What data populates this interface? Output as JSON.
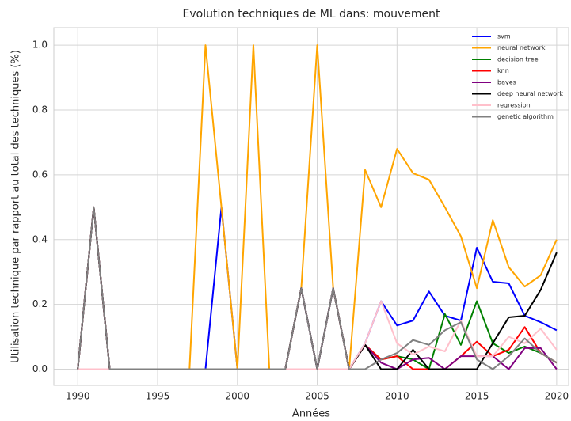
{
  "chart_data": {
    "type": "line",
    "title": "Evolution techniques de ML dans: mouvement",
    "xlabel": "Années",
    "ylabel": "Utilisation technique par rapport au total des techniques (%)",
    "x": [
      1990,
      1991,
      1992,
      1993,
      1994,
      1995,
      1996,
      1997,
      1998,
      1999,
      2000,
      2001,
      2002,
      2003,
      2004,
      2005,
      2006,
      2007,
      2008,
      2009,
      2010,
      2011,
      2012,
      2013,
      2014,
      2015,
      2016,
      2017,
      2018,
      2019,
      2020
    ],
    "series": [
      {
        "name": "svm",
        "color": "#0000ff",
        "values": [
          0,
          0.5,
          0,
          0,
          0,
          0,
          0,
          0,
          0,
          0.5,
          0,
          0,
          0,
          0,
          0.25,
          0,
          0.25,
          0,
          0.08,
          0.21,
          0.135,
          0.15,
          0.24,
          0.165,
          0.15,
          0.375,
          0.27,
          0.265,
          0.165,
          0.145,
          0.12
        ]
      },
      {
        "name": "neural network",
        "color": "#ffa500",
        "values": [
          0,
          0.5,
          0,
          0,
          0,
          0,
          0,
          0,
          1.0,
          0.5,
          0,
          1.0,
          0,
          0,
          0.25,
          1.0,
          0.25,
          0,
          0.615,
          0.5,
          0.68,
          0.605,
          0.585,
          0.5,
          0.41,
          0.25,
          0.46,
          0.315,
          0.255,
          0.29,
          0.4
        ]
      },
      {
        "name": "decision tree",
        "color": "#008000",
        "values": [
          0,
          0.5,
          0,
          0,
          0,
          0,
          0,
          0,
          0,
          0,
          0,
          0,
          0,
          0,
          0.25,
          0,
          0.25,
          0,
          0.075,
          0.03,
          0.04,
          0.03,
          0,
          0.17,
          0.075,
          0.21,
          0.08,
          0.05,
          0.07,
          0.05,
          0.02
        ]
      },
      {
        "name": "knn",
        "color": "#ff0000",
        "values": [
          0,
          0.5,
          0,
          0,
          0,
          0,
          0,
          0,
          0,
          0,
          0,
          0,
          0,
          0,
          0.25,
          0,
          0.25,
          0,
          0.075,
          0.03,
          0.04,
          0,
          0,
          0,
          0.04,
          0.085,
          0.04,
          0.06,
          0.13,
          0.05,
          0.02
        ]
      },
      {
        "name": "bayes",
        "color": "#800080",
        "values": [
          0,
          0.5,
          0,
          0,
          0,
          0,
          0,
          0,
          0,
          0,
          0,
          0,
          0,
          0,
          0.25,
          0,
          0.25,
          0,
          0.075,
          0.02,
          0,
          0.03,
          0.035,
          0,
          0.04,
          0.04,
          0.04,
          0,
          0.065,
          0.065,
          0
        ]
      },
      {
        "name": "deep neural network",
        "color": "#000000",
        "values": [
          0,
          0.5,
          0,
          0,
          0,
          0,
          0,
          0,
          0,
          0,
          0,
          0,
          0,
          0,
          0.25,
          0,
          0.25,
          0,
          0.075,
          0,
          0,
          0.06,
          0,
          0,
          0,
          0,
          0.08,
          0.16,
          0.165,
          0.245,
          0.36
        ]
      },
      {
        "name": "regression",
        "color": "#ffc0cb",
        "values": [
          0,
          0,
          0,
          0,
          0,
          0,
          0,
          0,
          0,
          0,
          0,
          0,
          0,
          0,
          0,
          0,
          0,
          0,
          0.08,
          0.21,
          0.08,
          0.045,
          0.07,
          0.055,
          0.15,
          0.04,
          0.04,
          0.1,
          0.08,
          0.125,
          0.06
        ]
      },
      {
        "name": "genetic algorithm",
        "color": "#808080",
        "values": [
          0,
          0.5,
          0,
          0,
          0,
          0,
          0,
          0,
          0,
          0,
          0,
          0,
          0,
          0,
          0.25,
          0,
          0.25,
          0,
          0,
          0.03,
          0.05,
          0.09,
          0.075,
          0.12,
          0.145,
          0.03,
          0,
          0.04,
          0.095,
          0.05,
          0.02
        ]
      }
    ],
    "xlim": [
      1988.5,
      2020.75
    ],
    "xticks": [
      1990,
      1995,
      2000,
      2005,
      2010,
      2015,
      2020
    ],
    "ylim": [
      -0.05,
      1.054
    ],
    "yticks": [
      {
        "value": 0,
        "label": "0.0"
      },
      {
        "value": 0.2,
        "label": "0.2"
      },
      {
        "value": 0.4,
        "label": "0.4"
      },
      {
        "value": 0.6,
        "label": "0.6"
      },
      {
        "value": 0.8,
        "label": "0.8"
      },
      {
        "value": 1,
        "label": "1.0"
      }
    ],
    "grid": true,
    "legend": "upper right"
  }
}
